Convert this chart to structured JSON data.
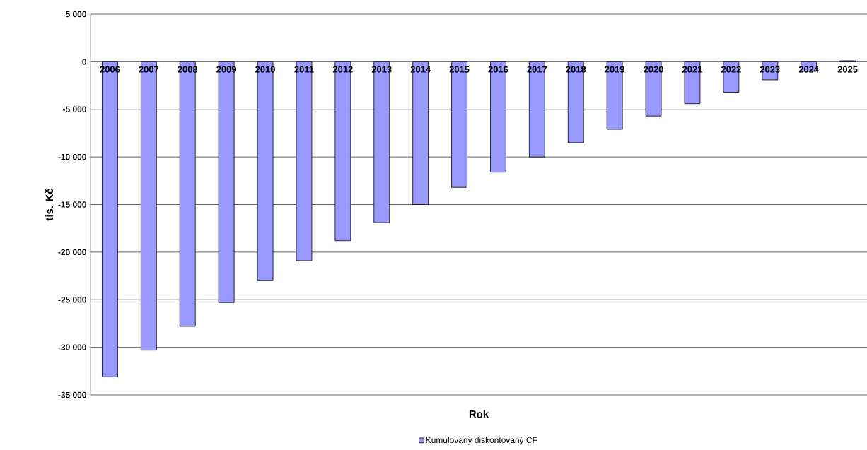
{
  "chart_data": {
    "type": "bar",
    "xlabel": "Rok",
    "ylabel": "tis. Kč",
    "categories": [
      "2006",
      "2007",
      "2008",
      "2009",
      "2010",
      "2011",
      "2012",
      "2013",
      "2014",
      "2015",
      "2016",
      "2017",
      "2018",
      "2019",
      "2020",
      "2021",
      "2022",
      "2023",
      "2024",
      "2025"
    ],
    "series": [
      {
        "name": "Kumulovaný diskontovaný CF",
        "color": "#9999ff",
        "values": [
          -33100,
          -30300,
          -27800,
          -25300,
          -23000,
          -20900,
          -18800,
          -16900,
          -15000,
          -13200,
          -11600,
          -10000,
          -8500,
          -7100,
          -5700,
          -4400,
          -3200,
          -1900,
          -1000,
          100
        ]
      }
    ],
    "ylim": [
      -35000,
      5000
    ],
    "yticks": [
      {
        "value": -35000,
        "label": "-35 000"
      },
      {
        "value": -30000,
        "label": "-30 000"
      },
      {
        "value": -25000,
        "label": "-25 000"
      },
      {
        "value": -20000,
        "label": "-20 000"
      },
      {
        "value": -15000,
        "label": "-15 000"
      },
      {
        "value": -10000,
        "label": "-10 000"
      },
      {
        "value": -5000,
        "label": "-5 000"
      },
      {
        "value": 0,
        "label": "0"
      },
      {
        "value": 5000,
        "label": "5 000"
      }
    ],
    "grid": "y",
    "legend": "bottom"
  }
}
